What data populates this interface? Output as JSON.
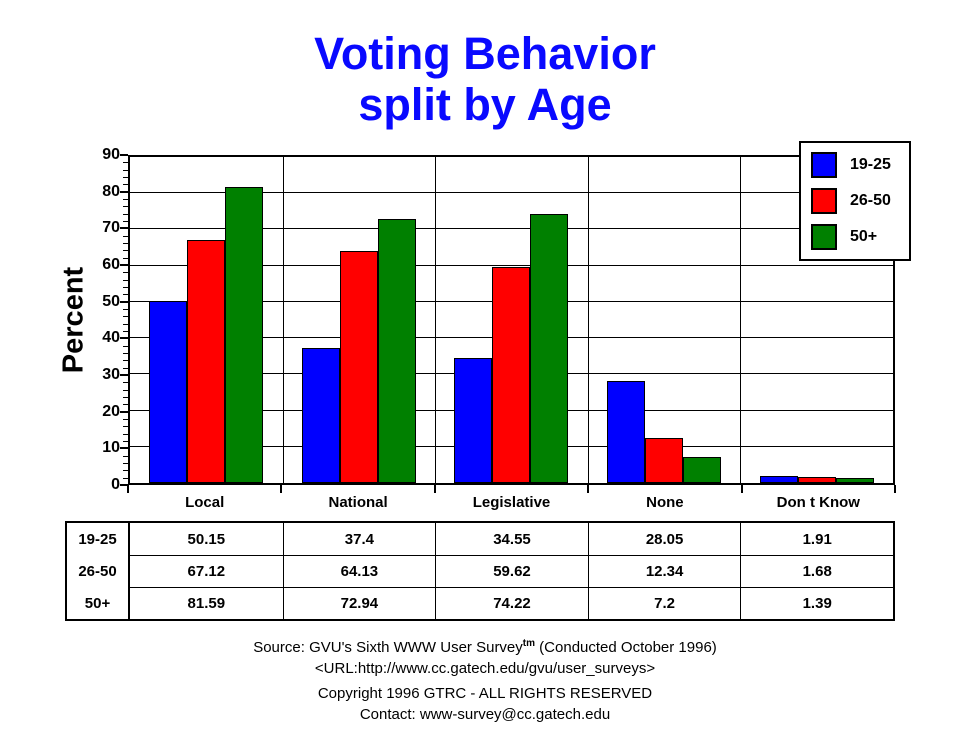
{
  "title": {
    "line1": "Voting Behavior",
    "line2": "split by Age"
  },
  "colors": {
    "title": "#0909ff",
    "axis": "#000000",
    "background": "#ffffff"
  },
  "chart_data": {
    "type": "bar",
    "title": "Voting Behavior split by Age",
    "xlabel": "",
    "ylabel": "Percent",
    "ylim": [
      0,
      90
    ],
    "ytick_interval": 10,
    "yminor_tick_interval": 2,
    "grid": true,
    "legend_position": "top-right",
    "categories": [
      "Local",
      "National",
      "Legislative",
      "None",
      "Don t Know"
    ],
    "series": [
      {
        "name": "19-25",
        "color": "#0000ff",
        "values": [
          50.15,
          37.4,
          34.55,
          28.05,
          1.91
        ]
      },
      {
        "name": "26-50",
        "color": "#ff0000",
        "values": [
          67.12,
          64.13,
          59.62,
          12.34,
          1.68
        ]
      },
      {
        "name": "50+",
        "color": "#008000",
        "values": [
          81.59,
          72.94,
          74.22,
          7.2,
          1.39
        ]
      }
    ]
  },
  "footer": {
    "source_prefix": "Source: GVU's Sixth WWW User Survey",
    "source_sup": "tm",
    "source_suffix": " (Conducted October 1996)",
    "url_line": "<URL:http://www.cc.gatech.edu/gvu/user_surveys>",
    "copyright_line": "Copyright 1996 GTRC -  ALL RIGHTS RESERVED",
    "contact_line": "Contact: www-survey@cc.gatech.edu"
  }
}
